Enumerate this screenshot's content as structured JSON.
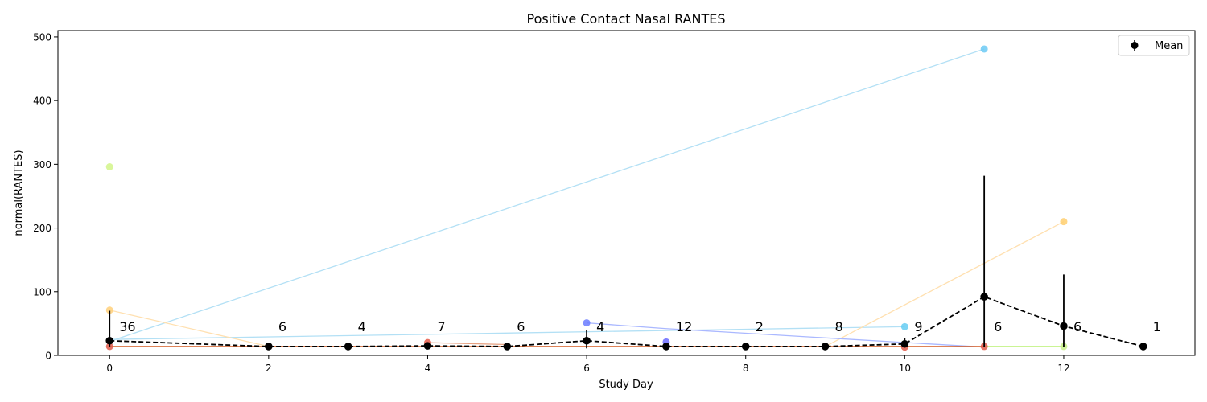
{
  "chart_data": {
    "type": "line",
    "title": "Positive Contact Nasal RANTES",
    "xlabel": "Study Day",
    "ylabel": "normal(RANTES)",
    "xlim": [
      -0.65,
      13.65
    ],
    "ylim": [
      0,
      510
    ],
    "xticks": [
      0,
      2,
      4,
      6,
      8,
      10,
      12
    ],
    "yticks": [
      0,
      100,
      200,
      300,
      400,
      500
    ],
    "grid": false,
    "legend": {
      "position": "top-right",
      "label": "Mean"
    },
    "subject_series": [
      {
        "color": "#b3e0f5",
        "x": [
          0,
          10
        ],
        "y": [
          25,
          45
        ]
      },
      {
        "color": "#b3e0f5",
        "x": [
          0,
          11
        ],
        "y": [
          22,
          481
        ]
      },
      {
        "color": "#ffe0b0",
        "x": [
          0,
          2
        ],
        "y": [
          71,
          14
        ]
      },
      {
        "color": "#ffe0b0",
        "x": [
          9,
          12
        ],
        "y": [
          14,
          210
        ]
      },
      {
        "color": "#c8f08a",
        "x": [
          0
        ],
        "y": [
          296
        ]
      },
      {
        "color": "#aab8ff",
        "x": [
          6,
          7,
          11
        ],
        "y": [
          51,
          42,
          13
        ]
      },
      {
        "color": "#9a9aff",
        "x": [
          7
        ],
        "y": [
          21
        ]
      },
      {
        "color": "#b8f070",
        "x": [
          11,
          12
        ],
        "y": [
          14,
          14
        ]
      },
      {
        "color": "#e6a080",
        "x": [
          4,
          5
        ],
        "y": [
          20,
          17
        ]
      },
      {
        "color": "#d35a20",
        "x": [
          0,
          11
        ],
        "y": [
          14,
          14
        ]
      }
    ],
    "subject_points": [
      {
        "x": 11,
        "y": 481,
        "color": "#6ccaf5"
      },
      {
        "x": 0,
        "y": 296,
        "color": "#d2f58a"
      },
      {
        "x": 12,
        "y": 210,
        "color": "#ffcf70"
      },
      {
        "x": 0,
        "y": 71,
        "color": "#ffd07a"
      },
      {
        "x": 6,
        "y": 51,
        "color": "#6b7bff"
      },
      {
        "x": 10,
        "y": 45,
        "color": "#66ccf2"
      },
      {
        "x": 7,
        "y": 21,
        "color": "#6b6bff"
      },
      {
        "x": 4,
        "y": 20,
        "color": "#e85c4a"
      },
      {
        "x": 11,
        "y": 14,
        "color": "#e05a4a"
      },
      {
        "x": 12,
        "y": 14,
        "color": "#c8f08a"
      },
      {
        "x": 0,
        "y": 14,
        "color": "#e05a4a"
      },
      {
        "x": 10,
        "y": 13,
        "color": "#e05a4a"
      }
    ],
    "mean_series": {
      "name": "Mean",
      "x": [
        0,
        2,
        3,
        4,
        5,
        6,
        7,
        8,
        9,
        10,
        11,
        12,
        13
      ],
      "y": [
        23,
        14,
        14,
        15,
        14,
        23,
        14,
        14,
        14,
        18,
        92,
        46,
        14
      ],
      "err_low": [
        14,
        14,
        14,
        14,
        14,
        11,
        14,
        14,
        14,
        14,
        13,
        13,
        14
      ],
      "err_high": [
        70,
        14,
        14,
        15,
        14,
        40,
        14,
        14,
        14,
        27,
        282,
        127,
        14
      ]
    },
    "count_labels": [
      {
        "x": 0,
        "text": "36"
      },
      {
        "x": 2,
        "text": "6"
      },
      {
        "x": 3,
        "text": "4"
      },
      {
        "x": 4,
        "text": "7"
      },
      {
        "x": 5,
        "text": "6"
      },
      {
        "x": 6,
        "text": "4"
      },
      {
        "x": 7,
        "text": "12"
      },
      {
        "x": 8,
        "text": "2"
      },
      {
        "x": 9,
        "text": "8"
      },
      {
        "x": 10,
        "text": "9"
      },
      {
        "x": 11,
        "text": "6"
      },
      {
        "x": 12,
        "text": "6"
      },
      {
        "x": 13,
        "text": "1"
      }
    ],
    "count_label_y": 34
  }
}
